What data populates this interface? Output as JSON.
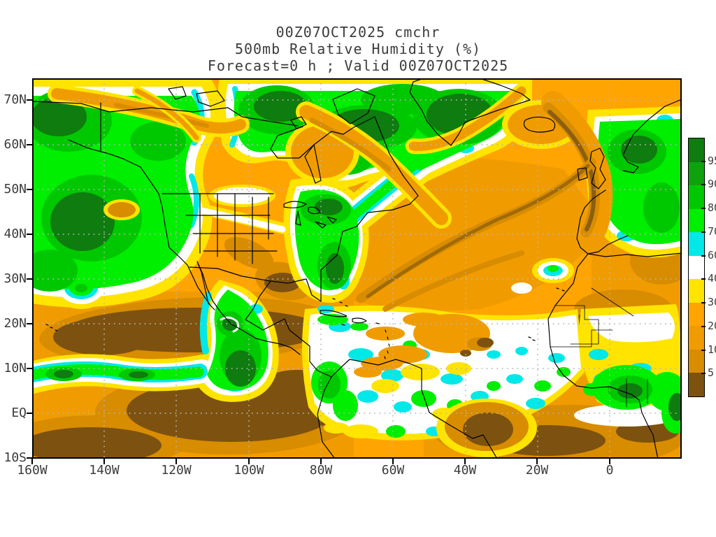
{
  "title": {
    "line1": "00Z07OCT2025 cmchr",
    "line2": "500mb Relative Humidity (%)",
    "line3": "Forecast=0 h ; Valid 00Z07OCT2025"
  },
  "axes": {
    "lat_labels": [
      "70N",
      "60N",
      "50N",
      "40N",
      "30N",
      "20N",
      "10N",
      "EQ",
      "10S"
    ],
    "lon_labels": [
      "160W",
      "140W",
      "120W",
      "100W",
      "80W",
      "60W",
      "40W",
      "20W",
      "0"
    ]
  },
  "colorbar": {
    "labels": [
      "95",
      "90",
      "80",
      "70",
      "60",
      "40",
      "30",
      "20",
      "10",
      "5"
    ],
    "colors_top_to_bottom": [
      "#0E7C0E",
      "#0FA20F",
      "#00C800",
      "#00EE00",
      "#00E8E8",
      "#FFFFFF",
      "#FFE400",
      "#FFA400",
      "#F09C00",
      "#D88C00",
      "#7D5210"
    ]
  },
  "chart_data": {
    "type": "heatmap",
    "title": "00Z07OCT2025 cmchr",
    "subtitle": "500mb Relative Humidity (%)",
    "caption": "Forecast=0 h ; Valid 00Z07OCT2025",
    "variable": "500mb Relative Humidity",
    "units": "%",
    "forecast_hour": 0,
    "valid_time": "00Z07OCT2025",
    "model_tag": "cmchr",
    "x_axis": {
      "ticks": [
        "160W",
        "140W",
        "120W",
        "100W",
        "80W",
        "60W",
        "40W",
        "20W",
        "0"
      ],
      "range_deg_lon": [
        -160,
        20
      ]
    },
    "y_axis": {
      "ticks": [
        "70N",
        "60N",
        "50N",
        "40N",
        "30N",
        "20N",
        "10N",
        "EQ",
        "10S"
      ],
      "range_deg_lat": [
        -10,
        75
      ]
    },
    "grid": "dotted gray every 10 deg latitude / 20 deg longitude",
    "legend_position": "right colorbar",
    "levels_percent": [
      5,
      10,
      20,
      30,
      40,
      60,
      70,
      80,
      90,
      95
    ],
    "palette_hex": [
      "#7D5210",
      "#D88C00",
      "#F09C00",
      "#FFA400",
      "#FFE400",
      "#FFFFFF",
      "#00E8E8",
      "#00EE00",
      "#00C800",
      "#0FA20F",
      "#0E7C0E"
    ],
    "features": [
      {
        "region": "Gulf of Alaska / Bering Sea",
        "rh_percent": "70-95+ moist mass with orange dry filaments across top"
      },
      {
        "region": "Northern Canada, Baffin Island, Greenland",
        "rh_percent": "80-95+ broad moist shield"
      },
      {
        "region": "Hudson Bay to Labrador Sea",
        "rh_percent": "10-30 dry band cutting through the green shield"
      },
      {
        "region": "Western / central United States",
        "rh_percent": "10-30 dry"
      },
      {
        "region": "Texas and northern Mexico",
        "rh_percent": "<5-10 very dry core"
      },
      {
        "region": "Great Lakes and southeastern US",
        "rh_percent": "60-95 moist band"
      },
      {
        "region": "Subtropical eastern Pacific 10-25N",
        "rh_percent": "<5-10 very dry (large brown area)"
      },
      {
        "region": "Pacific ITCZ near 8-10N west of 110W",
        "rh_percent": "70-95 moist band"
      },
      {
        "region": "Southern Mexico / Central America with cyclonic swirl near 18N 105W",
        "rh_percent": "70-95+"
      },
      {
        "region": "Caribbean, tropical Atlantic and northern South America",
        "rh_percent": "40-70 speckled white/cyan/green"
      },
      {
        "region": "Central North Atlantic gyre",
        "rh_percent": "10-30 with 5-10 brown filaments"
      },
      {
        "region": "Iceland to Ireland filament",
        "rh_percent": "5-20 dry streak"
      },
      {
        "region": "UK, Scandinavia, western Europe",
        "rh_percent": "70-95 moist"
      },
      {
        "region": "Sahara and Mauritania coast",
        "rh_percent": "<5-20 dry"
      },
      {
        "region": "Sahel / Gulf of Guinea",
        "rh_percent": "70-95 moist"
      },
      {
        "region": "South Atlantic 0-10S",
        "rh_percent": "<5-20 dry"
      }
    ]
  }
}
